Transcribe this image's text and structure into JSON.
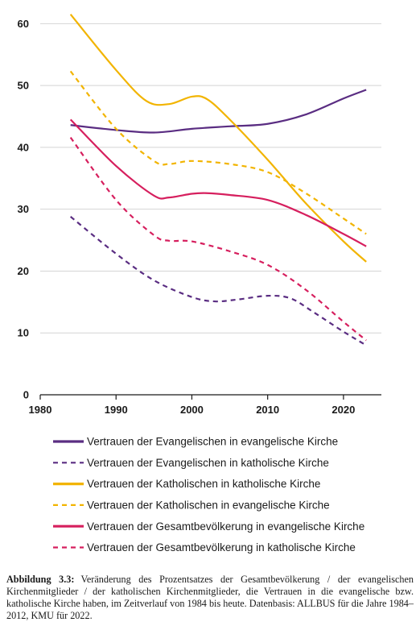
{
  "chart_data": {
    "type": "line",
    "x_ticks": [
      1980,
      1990,
      2000,
      2010,
      2020
    ],
    "y_ticks": [
      0,
      10,
      20,
      30,
      40,
      50,
      60
    ],
    "xlim": [
      1980,
      2025
    ],
    "ylim": [
      0,
      62
    ],
    "grid": "horizontal",
    "legend_position": "bottom",
    "series": [
      {
        "name": "Vertrauen der Evangelischen in evangelische Kirche",
        "color": "#5a2d82",
        "dash": "solid",
        "points": [
          [
            1984,
            43.6
          ],
          [
            1990,
            42.8
          ],
          [
            1995,
            42.4
          ],
          [
            2000,
            43.0
          ],
          [
            2005,
            43.4
          ],
          [
            2010,
            43.8
          ],
          [
            2015,
            45.3
          ],
          [
            2020,
            47.9
          ],
          [
            2023,
            49.3
          ]
        ]
      },
      {
        "name": "Vertrauen der Evangelischen in katholische Kirche",
        "color": "#5a2d82",
        "dash": "dashed",
        "points": [
          [
            1984,
            28.8
          ],
          [
            1990,
            22.8
          ],
          [
            1995,
            18.5
          ],
          [
            2000,
            15.8
          ],
          [
            2003,
            15.1
          ],
          [
            2006,
            15.4
          ],
          [
            2010,
            16.0
          ],
          [
            2013,
            15.6
          ],
          [
            2016,
            13.4
          ],
          [
            2020,
            10.2
          ],
          [
            2023,
            8.0
          ]
        ]
      },
      {
        "name": "Vertrauen der Katholischen in katholische Kirche",
        "color": "#f2b400",
        "dash": "solid",
        "points": [
          [
            1984,
            61.5
          ],
          [
            1990,
            52.5
          ],
          [
            1994,
            47.5
          ],
          [
            1997,
            47.0
          ],
          [
            2000,
            48.2
          ],
          [
            2002,
            47.8
          ],
          [
            2005,
            44.5
          ],
          [
            2010,
            38.0
          ],
          [
            2015,
            31.0
          ],
          [
            2020,
            24.8
          ],
          [
            2023,
            21.5
          ]
        ]
      },
      {
        "name": "Vertrauen der Katholischen in evangelische Kirche",
        "color": "#f2b400",
        "dash": "dashed",
        "points": [
          [
            1984,
            52.3
          ],
          [
            1990,
            43.0
          ],
          [
            1995,
            37.8
          ],
          [
            1997,
            37.3
          ],
          [
            2000,
            37.8
          ],
          [
            2005,
            37.3
          ],
          [
            2010,
            36.0
          ],
          [
            2015,
            32.6
          ],
          [
            2020,
            28.5
          ],
          [
            2023,
            26.0
          ]
        ]
      },
      {
        "name": "Vertrauen der Gesamtbevölkerung in evangelische Kirche",
        "color": "#d61f5e",
        "dash": "solid",
        "points": [
          [
            1984,
            44.5
          ],
          [
            1990,
            37.0
          ],
          [
            1995,
            32.2
          ],
          [
            1997,
            31.9
          ],
          [
            2000,
            32.5
          ],
          [
            2002,
            32.6
          ],
          [
            2005,
            32.3
          ],
          [
            2010,
            31.5
          ],
          [
            2015,
            29.1
          ],
          [
            2020,
            26.0
          ],
          [
            2023,
            24.0
          ]
        ]
      },
      {
        "name": "Vertrauen der Gesamtbevölkerung in katholische Kirche",
        "color": "#d61f5e",
        "dash": "dashed",
        "points": [
          [
            1984,
            41.6
          ],
          [
            1990,
            31.5
          ],
          [
            1995,
            25.8
          ],
          [
            1997,
            24.9
          ],
          [
            2000,
            24.8
          ],
          [
            2005,
            23.2
          ],
          [
            2010,
            21.0
          ],
          [
            2015,
            17.0
          ],
          [
            2020,
            11.8
          ],
          [
            2023,
            8.8
          ]
        ]
      }
    ]
  },
  "caption": {
    "label": "Abbildung 3.3:",
    "text": "Veränderung des Prozentsatzes der Gesamtbevölkerung / der evangelischen Kirchenmitglieder / der katholischen Kirchenmitglieder, die Vertrauen in die evangelische bzw. katholische Kirche haben, im Zeitverlauf von 1984 bis heute. Datenbasis: ALLBUS für die Jahre 1984–2012, KMU für 2022."
  }
}
